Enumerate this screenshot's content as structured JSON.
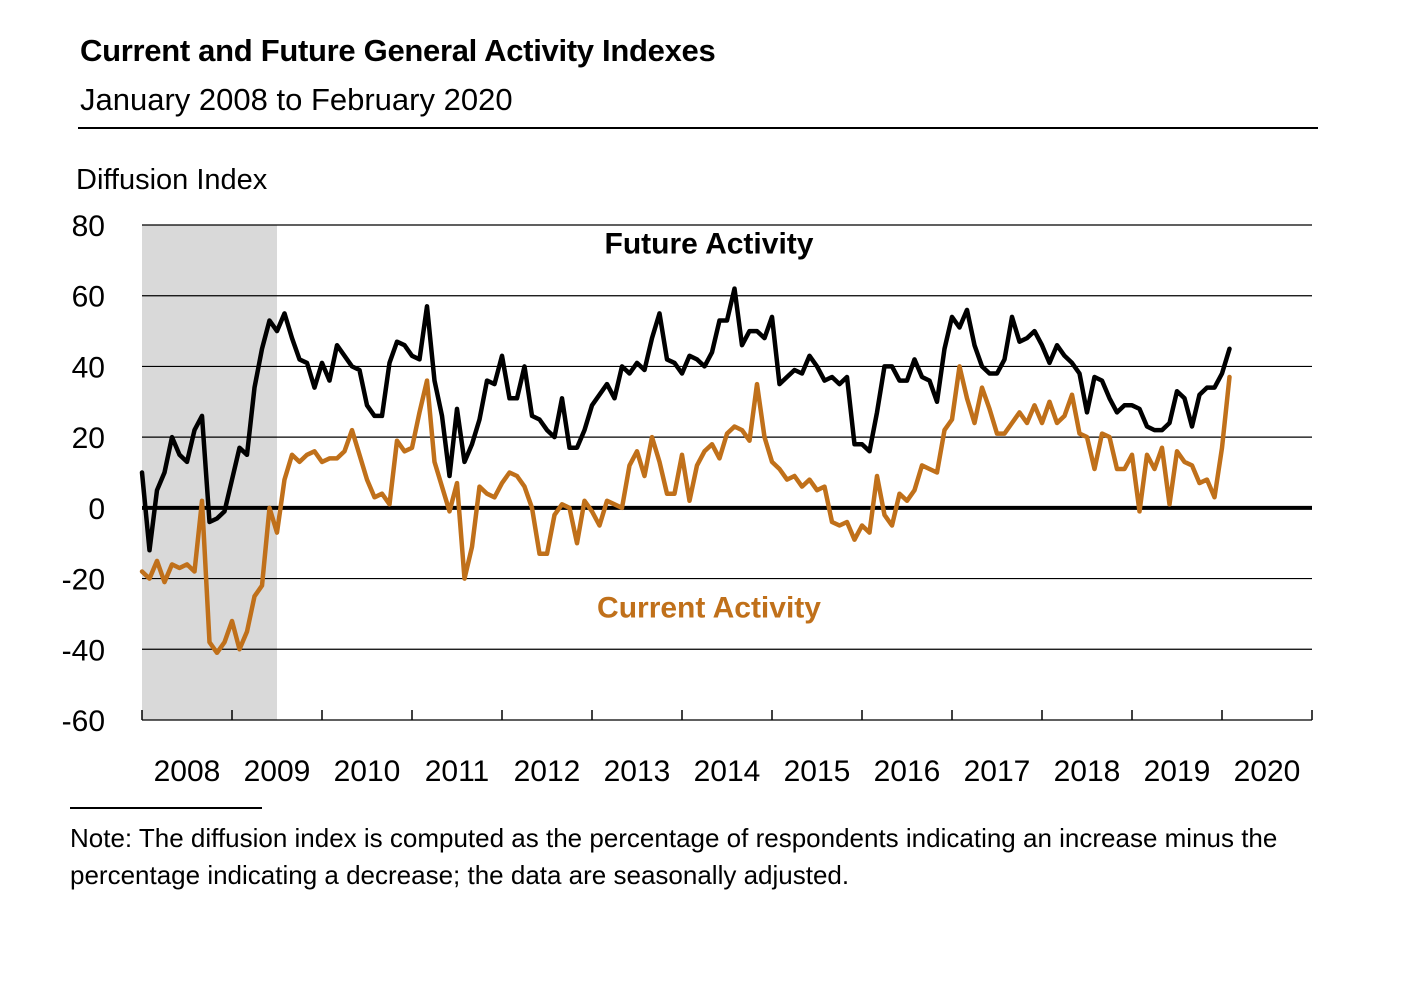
{
  "title": "Current and Future General Activity Indexes",
  "subtitle": "January 2008 to February 2020",
  "note": "Note: The diffusion index is computed as the percentage of respondents indicating an increase minus the percentage indicating a decrease; the data are seasonally adjusted.",
  "colors": {
    "future": "#000000",
    "current": "#c0701a",
    "recession": "#d9d9d9",
    "grid": "#000000"
  },
  "chart_data": {
    "type": "line",
    "title": "Current and Future General Activity Indexes",
    "subtitle": "January 2008 to February 2020",
    "ylabel": "Diffusion Index",
    "xlabel": "",
    "ylim": [
      -60,
      80
    ],
    "yticks": [
      80,
      60,
      40,
      20,
      0,
      -20,
      -40,
      -60
    ],
    "ytick_labels": [
      "80",
      "60",
      "40",
      "20",
      "0",
      "-20",
      "-40",
      "-60"
    ],
    "xlim": [
      2008.0,
      2021.0
    ],
    "xticks": [
      "2008",
      "2009",
      "2010",
      "2011",
      "2012",
      "2013",
      "2014",
      "2015",
      "2016",
      "2017",
      "2018",
      "2019",
      "2020"
    ],
    "grid": true,
    "recession_shading": {
      "start": 2008.0,
      "end": 2009.5
    },
    "annotations": [
      {
        "label": "Future Activity",
        "series": "Future Activity",
        "x": 2014.3,
        "y": 72
      },
      {
        "label": "Current Activity",
        "series": "Current Activity",
        "x": 2014.3,
        "y": -31
      }
    ],
    "x_start": 2008.0,
    "x_step": 0.0833333,
    "series": [
      {
        "name": "Future Activity",
        "values": [
          10,
          -12,
          5,
          10,
          20,
          15,
          13,
          22,
          26,
          -4,
          -3,
          -1,
          8,
          17,
          15,
          34,
          45,
          53,
          50,
          55,
          48,
          42,
          41,
          34,
          41,
          36,
          46,
          43,
          40,
          39,
          29,
          26,
          26,
          41,
          47,
          46,
          43,
          42,
          57,
          36,
          26,
          9,
          28,
          13,
          18,
          25,
          36,
          35,
          43,
          31,
          31,
          40,
          26,
          25,
          22,
          20,
          31,
          17,
          17,
          22,
          29,
          32,
          35,
          31,
          40,
          38,
          41,
          39,
          48,
          55,
          42,
          41,
          38,
          43,
          42,
          40,
          44,
          53,
          53,
          62,
          46,
          50,
          50,
          48,
          54,
          35,
          37,
          39,
          38,
          43,
          40,
          36,
          37,
          35,
          37,
          18,
          18,
          16,
          27,
          40,
          40,
          36,
          36,
          42,
          37,
          36,
          30,
          45,
          54,
          51,
          56,
          46,
          40,
          38,
          38,
          42,
          54,
          47,
          48,
          50,
          46,
          41,
          46,
          43,
          41,
          38,
          27,
          37,
          36,
          31,
          27,
          29,
          29,
          28,
          23,
          22,
          22,
          24,
          33,
          31,
          23,
          32,
          34,
          34,
          38,
          45
        ]
      },
      {
        "name": "Current Activity",
        "values": [
          -18,
          -20,
          -15,
          -21,
          -16,
          -17,
          -16,
          -18,
          2,
          -38,
          -41,
          -38,
          -32,
          -40,
          -35,
          -25,
          -22,
          0,
          -7,
          8,
          15,
          13,
          15,
          16,
          13,
          14,
          14,
          16,
          22,
          15,
          8,
          3,
          4,
          1,
          19,
          16,
          17,
          27,
          36,
          13,
          6,
          -1,
          7,
          -20,
          -11,
          6,
          4,
          3,
          7,
          10,
          9,
          6,
          0,
          -13,
          -13,
          -2,
          1,
          0,
          -10,
          2,
          -1,
          -5,
          2,
          1,
          0,
          12,
          16,
          9,
          20,
          13,
          4,
          4,
          15,
          2,
          12,
          16,
          18,
          14,
          21,
          23,
          22,
          19,
          35,
          20,
          13,
          11,
          8,
          9,
          6,
          8,
          5,
          6,
          -4,
          -5,
          -4,
          -9,
          -5,
          -7,
          9,
          -2,
          -5,
          4,
          2,
          5,
          12,
          11,
          10,
          22,
          25,
          40,
          31,
          24,
          34,
          28,
          21,
          21,
          24,
          27,
          24,
          29,
          24,
          30,
          24,
          26,
          32,
          21,
          20,
          11,
          21,
          20,
          11,
          11,
          15,
          -1,
          15,
          11,
          17,
          1,
          16,
          13,
          12,
          7,
          8,
          3,
          17,
          37
        ]
      }
    ]
  }
}
